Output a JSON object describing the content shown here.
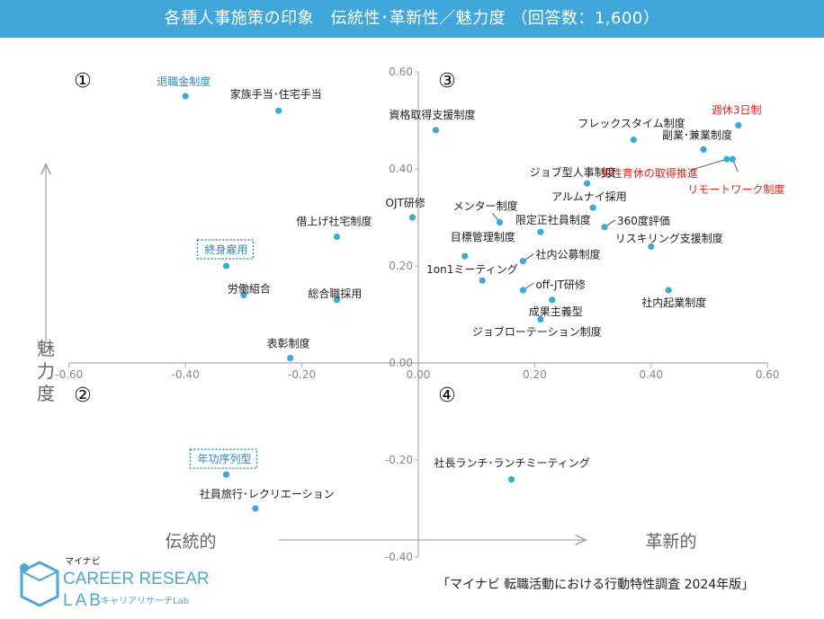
{
  "header": {
    "title": "各種人事施策の印象　伝統性･革新性／魅力度 （回答数：1,600）"
  },
  "colors": {
    "header_bg": "#3fa7d9",
    "point": "#3aa9dc",
    "label_default": "#222222",
    "label_blue": "#2b8ac4",
    "label_red": "#e8251e",
    "axis": "#aaaaaa"
  },
  "chart_data": {
    "type": "scatter",
    "title": "各種人事施策の印象　伝統性･革新性／魅力度 （回答数：1,600）",
    "xlabel": "",
    "ylabel": "魅力度",
    "xlim": [
      -0.6,
      0.6
    ],
    "ylim": [
      -0.4,
      0.6
    ],
    "xticks": [
      "-0.60",
      "-0.40",
      "-0.20",
      "0.00",
      "0.20",
      "0.40",
      "0.60"
    ],
    "yticks": [
      "0.60",
      "0.40",
      "0.20",
      "0.00",
      "-0.20",
      "-0.40"
    ],
    "grid": false,
    "quadrants": [
      "①",
      "②",
      "③",
      "④"
    ],
    "arrow_left": "伝統的",
    "arrow_right": "革新的",
    "points": [
      {
        "label": "退職金制度",
        "x": -0.4,
        "y": 0.55,
        "color": "blue"
      },
      {
        "label": "家族手当･住宅手当",
        "x": -0.24,
        "y": 0.52,
        "color": "default"
      },
      {
        "label": "資格取得支援制度",
        "x": 0.03,
        "y": 0.48,
        "color": "default"
      },
      {
        "label": "週休3日制",
        "x": 0.55,
        "y": 0.49,
        "color": "red"
      },
      {
        "label": "フレックスタイム制度",
        "x": 0.37,
        "y": 0.46,
        "color": "default"
      },
      {
        "label": "副業･兼業制度",
        "x": 0.49,
        "y": 0.44,
        "color": "default"
      },
      {
        "label": "男性育休の取得推進",
        "x": 0.53,
        "y": 0.42,
        "color": "red"
      },
      {
        "label": "リモートワーク制度",
        "x": 0.54,
        "y": 0.42,
        "color": "red"
      },
      {
        "label": "ジョブ型人事制度",
        "x": 0.29,
        "y": 0.37,
        "color": "default"
      },
      {
        "label": "アルムナイ採用",
        "x": 0.3,
        "y": 0.32,
        "color": "default"
      },
      {
        "label": "OJT研修",
        "x": -0.01,
        "y": 0.3,
        "color": "default"
      },
      {
        "label": "メンター制度",
        "x": 0.14,
        "y": 0.29,
        "color": "default"
      },
      {
        "label": "限定正社員制度",
        "x": 0.21,
        "y": 0.27,
        "color": "default"
      },
      {
        "label": "360度評価",
        "x": 0.32,
        "y": 0.28,
        "color": "default"
      },
      {
        "label": "借上げ社宅制度",
        "x": -0.14,
        "y": 0.26,
        "color": "default"
      },
      {
        "label": "終身雇用",
        "x": -0.33,
        "y": 0.2,
        "color": "blue"
      },
      {
        "label": "目標管理制度",
        "x": 0.08,
        "y": 0.22,
        "color": "default"
      },
      {
        "label": "社内公募制度",
        "x": 0.18,
        "y": 0.21,
        "color": "default"
      },
      {
        "label": "リスキリング支援制度",
        "x": 0.4,
        "y": 0.24,
        "color": "default"
      },
      {
        "label": "1on1ミーティング",
        "x": 0.11,
        "y": 0.17,
        "color": "default"
      },
      {
        "label": "off-JT研修",
        "x": 0.18,
        "y": 0.15,
        "color": "default"
      },
      {
        "label": "労働組合",
        "x": -0.3,
        "y": 0.14,
        "color": "default"
      },
      {
        "label": "総合職採用",
        "x": -0.14,
        "y": 0.13,
        "color": "default"
      },
      {
        "label": "成果主義型",
        "x": 0.23,
        "y": 0.13,
        "color": "default"
      },
      {
        "label": "社内起業制度",
        "x": 0.43,
        "y": 0.15,
        "color": "default"
      },
      {
        "label": "ジョブローテーション制度",
        "x": 0.21,
        "y": 0.09,
        "color": "default"
      },
      {
        "label": "表彰制度",
        "x": -0.22,
        "y": 0.01,
        "color": "default"
      },
      {
        "label": "社長ランチ･ランチミーティング",
        "x": 0.16,
        "y": -0.24,
        "color": "default"
      },
      {
        "label": "年功序列型",
        "x": -0.33,
        "y": -0.23,
        "color": "blue"
      },
      {
        "label": "社員旅行･レクリエーション",
        "x": -0.28,
        "y": -0.3,
        "color": "default"
      }
    ]
  },
  "footer": {
    "brand_small": "マイナビ",
    "brand_main": "CAREER RESEARCH",
    "brand_lab": "LAB",
    "brand_sub": "キャリアリサーチLab",
    "source": "「マイナビ 転職活動における行動特性調査 2024年版」"
  }
}
